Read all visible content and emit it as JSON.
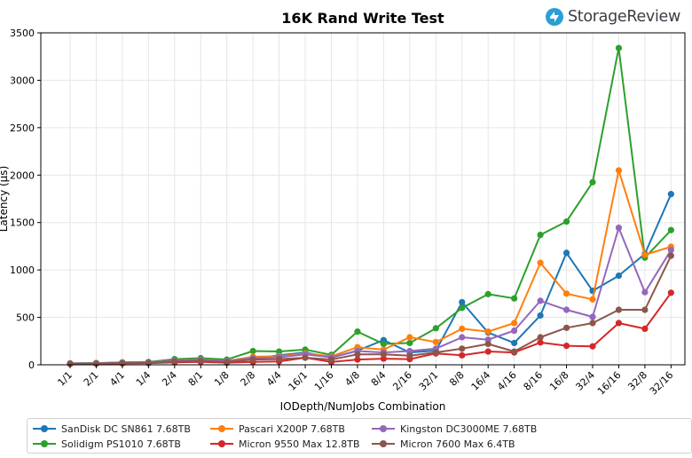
{
  "brand": {
    "name": "StorageReview",
    "icon": "storagereview-logo-icon",
    "color": "#2a9fd6"
  },
  "chart_data": {
    "type": "line",
    "title": "16K Rand Write Test",
    "xlabel": "IODepth/NumJobs Combination",
    "ylabel": "Latency (µs)",
    "ylim": [
      0,
      3500
    ],
    "yticks": [
      0,
      500,
      1000,
      1500,
      2000,
      2500,
      3000,
      3500
    ],
    "grid": true,
    "legend_position": "bottom",
    "categories": [
      "1/1",
      "2/1",
      "4/1",
      "1/4",
      "2/4",
      "8/1",
      "1/8",
      "2/8",
      "4/4",
      "16/1",
      "1/16",
      "4/8",
      "8/4",
      "2/16",
      "32/1",
      "8/8",
      "16/4",
      "4/16",
      "8/16",
      "16/8",
      "32/4",
      "16/16",
      "32/8",
      "32/16"
    ],
    "series": [
      {
        "name": "SanDisk DC SN861 7.68TB",
        "color": "#1f77b4",
        "values": [
          15,
          18,
          25,
          30,
          55,
          65,
          45,
          65,
          100,
          130,
          75,
          150,
          260,
          130,
          150,
          660,
          340,
          230,
          520,
          1180,
          780,
          940,
          1170,
          1800
        ]
      },
      {
        "name": "Solidigm PS1010 7.68TB",
        "color": "#2ca02c",
        "values": [
          15,
          18,
          25,
          28,
          60,
          70,
          55,
          145,
          140,
          160,
          105,
          350,
          220,
          230,
          385,
          600,
          745,
          700,
          1370,
          1510,
          1925,
          3340,
          1130,
          1420
        ]
      },
      {
        "name": "Pascari X200P 7.68TB",
        "color": "#ff7f0e",
        "values": [
          12,
          16,
          22,
          25,
          45,
          55,
          40,
          85,
          90,
          120,
          90,
          185,
          160,
          290,
          240,
          380,
          350,
          440,
          1075,
          750,
          690,
          2050,
          1160,
          1245
        ]
      },
      {
        "name": "Micron 9550 Max 12.8TB",
        "color": "#d62728",
        "values": [
          10,
          12,
          15,
          18,
          25,
          30,
          22,
          30,
          35,
          75,
          30,
          55,
          65,
          60,
          120,
          100,
          140,
          130,
          235,
          200,
          195,
          440,
          380,
          760
        ]
      },
      {
        "name": "Kingston DC3000ME 7.68TB",
        "color": "#9467bd",
        "values": [
          12,
          15,
          22,
          25,
          45,
          55,
          40,
          70,
          80,
          110,
          80,
          145,
          130,
          145,
          170,
          290,
          265,
          360,
          675,
          580,
          505,
          1445,
          765,
          1210
        ]
      },
      {
        "name": "Micron 7600 Max 6.4TB",
        "color": "#8c564b",
        "values": [
          10,
          12,
          18,
          20,
          35,
          40,
          30,
          55,
          60,
          75,
          55,
          110,
          110,
          95,
          130,
          170,
          220,
          140,
          290,
          390,
          440,
          580,
          580,
          1150
        ]
      }
    ]
  }
}
